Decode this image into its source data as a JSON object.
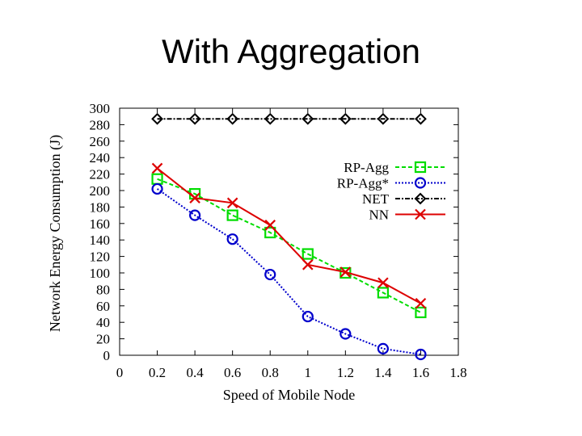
{
  "slide": {
    "title": "With Aggregation"
  },
  "chart_data": {
    "type": "line",
    "title": "",
    "xlabel": "Speed of Mobile Node",
    "ylabel": "Network Energy Consumption (J)",
    "xlim": [
      0,
      1.8
    ],
    "ylim": [
      0,
      300
    ],
    "xticks": [
      "0",
      "0.2",
      "0.4",
      "0.6",
      "0.8",
      "1",
      "1.2",
      "1.4",
      "1.6",
      "1.8"
    ],
    "yticks": [
      "0",
      "20",
      "40",
      "60",
      "80",
      "100",
      "120",
      "140",
      "160",
      "180",
      "200",
      "220",
      "240",
      "260",
      "280",
      "300"
    ],
    "grid": false,
    "legend_position": "top-right",
    "x": [
      0.2,
      0.4,
      0.6,
      0.8,
      1.0,
      1.2,
      1.4,
      1.6
    ],
    "series": [
      {
        "name": "RP-Agg",
        "color": "#00dd00",
        "dash": "dashed",
        "marker": "square",
        "values": [
          214,
          196,
          170,
          149,
          123,
          100,
          76,
          52
        ]
      },
      {
        "name": "RP-Agg*",
        "color": "#0000cc",
        "dash": "dotted",
        "marker": "circle",
        "values": [
          202,
          170,
          141,
          98,
          47,
          26,
          8,
          1
        ]
      },
      {
        "name": "NET",
        "color": "#000000",
        "dash": "dashdot",
        "marker": "diamond",
        "values": [
          287,
          287,
          287,
          287,
          287,
          287,
          287,
          287
        ]
      },
      {
        "name": "NN",
        "color": "#dd0000",
        "dash": "solid",
        "marker": "x",
        "values": [
          227,
          191,
          185,
          158,
          110,
          101,
          88,
          63
        ]
      }
    ]
  }
}
